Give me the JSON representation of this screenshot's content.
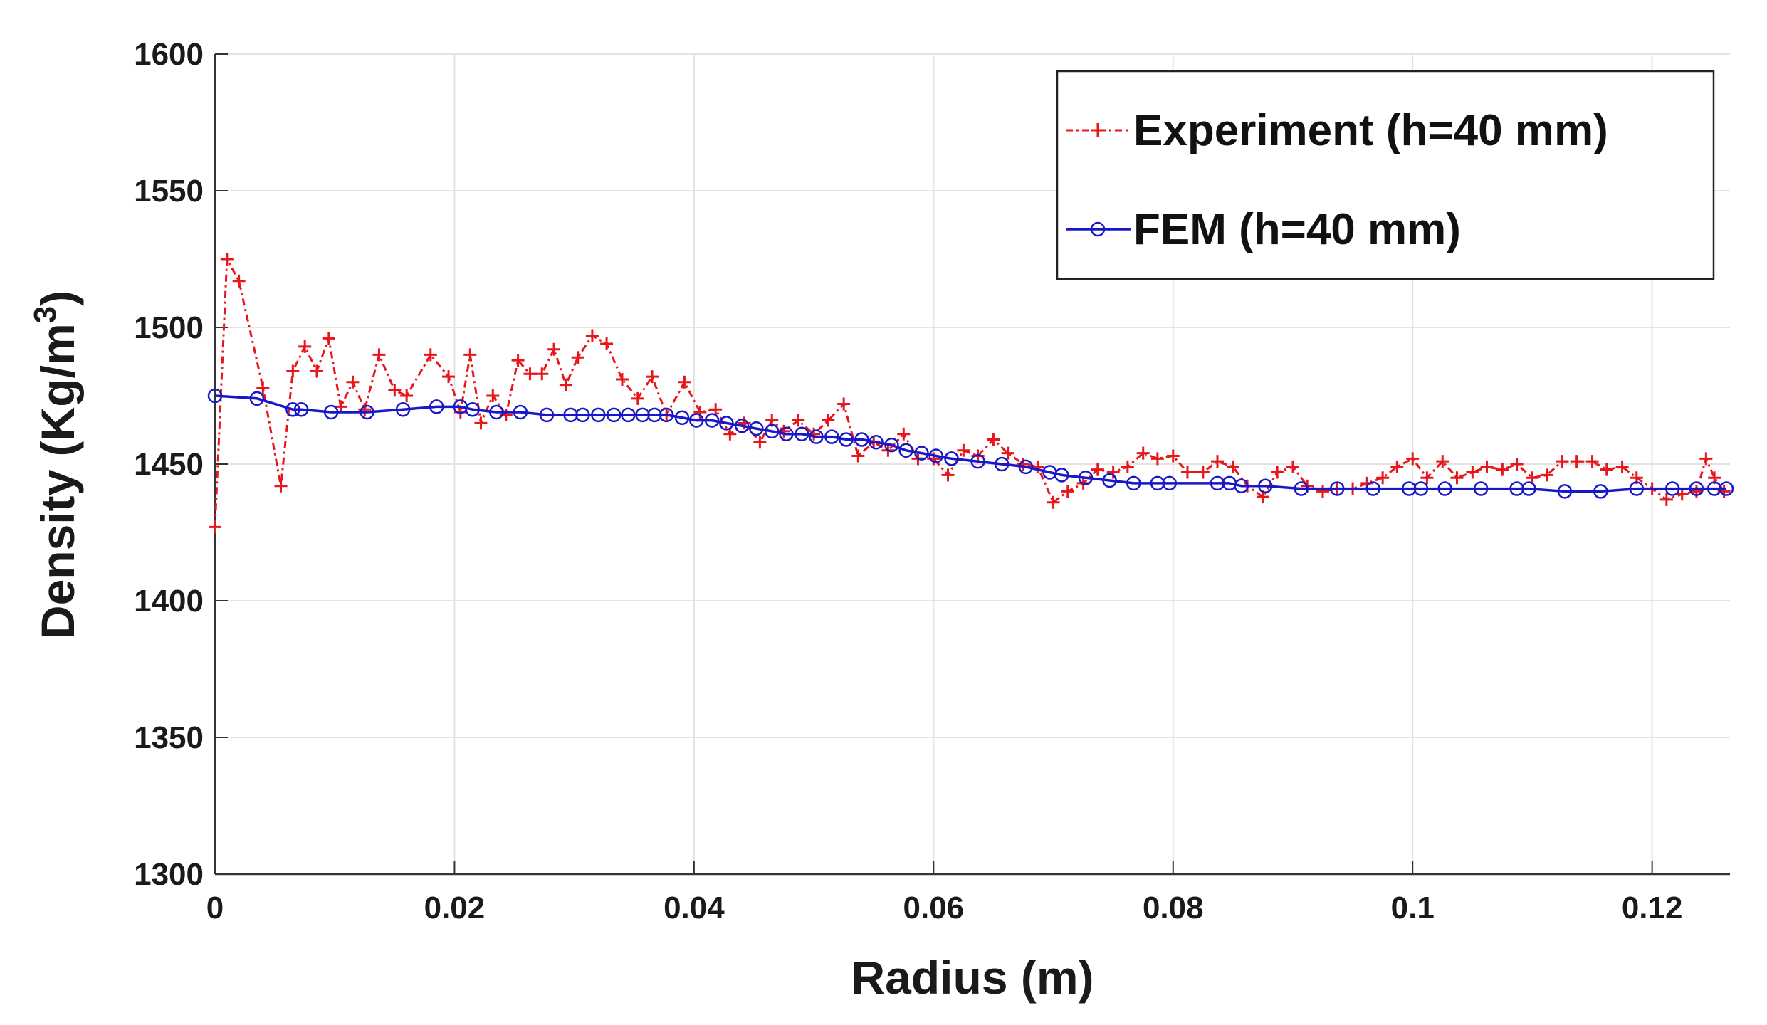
{
  "chart_data": {
    "type": "line",
    "title": "",
    "xlabel": "Radius (m)",
    "ylabel_main": "Density (Kg/m",
    "ylabel_sup": "3",
    "ylabel_close": ")",
    "xlim": [
      0,
      0.1265
    ],
    "ylim": [
      1300,
      1600
    ],
    "xticks": [
      0,
      0.02,
      0.04,
      0.06,
      0.08,
      0.1,
      0.12
    ],
    "xtick_labels": [
      "0",
      "0.02",
      "0.04",
      "0.06",
      "0.08",
      "0.1",
      "0.12"
    ],
    "yticks": [
      1300,
      1350,
      1400,
      1450,
      1500,
      1550,
      1600
    ],
    "ytick_labels": [
      "1300",
      "1350",
      "1400",
      "1450",
      "1500",
      "1550",
      "1600"
    ],
    "grid": true,
    "legend_position": "top-right",
    "series": [
      {
        "name": "Experiment (h=40 mm)",
        "color": "#e8161b",
        "line_style": "dash-dot",
        "marker": "plus",
        "x": [
          0,
          0.001,
          0.002,
          0.004,
          0.0055,
          0.0065,
          0.0075,
          0.0085,
          0.0095,
          0.0105,
          0.0115,
          0.0125,
          0.0137,
          0.015,
          0.016,
          0.018,
          0.0195,
          0.0205,
          0.0213,
          0.0222,
          0.0232,
          0.0243,
          0.0253,
          0.0263,
          0.0273,
          0.0283,
          0.0293,
          0.0303,
          0.0315,
          0.0327,
          0.034,
          0.0353,
          0.0365,
          0.0377,
          0.0392,
          0.0405,
          0.0418,
          0.043,
          0.0442,
          0.0455,
          0.0465,
          0.0475,
          0.0487,
          0.05,
          0.0512,
          0.0525,
          0.0537,
          0.055,
          0.0562,
          0.0575,
          0.0587,
          0.06,
          0.0612,
          0.0625,
          0.0637,
          0.065,
          0.0662,
          0.0675,
          0.0687,
          0.07,
          0.0712,
          0.0725,
          0.0737,
          0.075,
          0.0762,
          0.0775,
          0.0787,
          0.08,
          0.0812,
          0.0825,
          0.0837,
          0.085,
          0.0862,
          0.0875,
          0.0887,
          0.09,
          0.0912,
          0.0925,
          0.0937,
          0.095,
          0.0962,
          0.0975,
          0.0987,
          0.1,
          0.1012,
          0.1025,
          0.1037,
          0.105,
          0.1062,
          0.1075,
          0.1087,
          0.11,
          0.1112,
          0.1125,
          0.1137,
          0.115,
          0.1162,
          0.1175,
          0.1187,
          0.12,
          0.1212,
          0.1225,
          0.1237,
          0.1245,
          0.1252,
          0.126
        ],
        "y": [
          1427,
          1525,
          1517,
          1478,
          1442,
          1484,
          1493,
          1484,
          1496,
          1471,
          1480,
          1470,
          1490,
          1477,
          1475,
          1490,
          1482,
          1469,
          1490,
          1465,
          1475,
          1468,
          1488,
          1483,
          1483,
          1492,
          1479,
          1489,
          1497,
          1494,
          1481,
          1474,
          1482,
          1468,
          1480,
          1469,
          1470,
          1461,
          1465,
          1458,
          1466,
          1462,
          1466,
          1461,
          1466,
          1472,
          1453,
          1458,
          1455,
          1461,
          1452,
          1452,
          1446,
          1455,
          1453,
          1459,
          1454,
          1450,
          1449,
          1436,
          1440,
          1443,
          1448,
          1447,
          1449,
          1454,
          1452,
          1453,
          1447,
          1447,
          1451,
          1449,
          1442,
          1438,
          1447,
          1449,
          1442,
          1440,
          1441,
          1441,
          1443,
          1445,
          1449,
          1452,
          1445,
          1451,
          1445,
          1447,
          1449,
          1448,
          1450,
          1445,
          1446,
          1451,
          1451,
          1451,
          1448,
          1449,
          1445,
          1441,
          1437,
          1439,
          1440,
          1452,
          1445,
          1440
        ]
      },
      {
        "name": "FEM (h=40 mm)",
        "color": "#1818c8",
        "line_style": "solid",
        "marker": "circle",
        "x": [
          0,
          0.0035,
          0.0065,
          0.0072,
          0.0097,
          0.0127,
          0.0157,
          0.0185,
          0.0205,
          0.0215,
          0.0235,
          0.0255,
          0.0277,
          0.0297,
          0.0307,
          0.032,
          0.0333,
          0.0345,
          0.0357,
          0.0367,
          0.0377,
          0.039,
          0.0402,
          0.0415,
          0.0427,
          0.044,
          0.0452,
          0.0465,
          0.0477,
          0.049,
          0.0502,
          0.0515,
          0.0527,
          0.054,
          0.0552,
          0.0565,
          0.0577,
          0.059,
          0.0602,
          0.0615,
          0.0637,
          0.0657,
          0.0677,
          0.0697,
          0.0707,
          0.0727,
          0.0747,
          0.0767,
          0.0787,
          0.0797,
          0.0837,
          0.0847,
          0.0857,
          0.0877,
          0.0907,
          0.0937,
          0.0967,
          0.0997,
          0.1007,
          0.1027,
          0.1057,
          0.1087,
          0.1097,
          0.1127,
          0.1157,
          0.1187,
          0.1217,
          0.1237,
          0.1252,
          0.1262
        ],
        "y": [
          1475,
          1474,
          1470,
          1470,
          1469,
          1469,
          1470,
          1471,
          1471,
          1470,
          1469,
          1469,
          1468,
          1468,
          1468,
          1468,
          1468,
          1468,
          1468,
          1468,
          1468,
          1467,
          1466,
          1466,
          1465,
          1464,
          1463,
          1462,
          1461,
          1461,
          1460,
          1460,
          1459,
          1459,
          1458,
          1457,
          1455,
          1454,
          1453,
          1452,
          1451,
          1450,
          1449,
          1447,
          1446,
          1445,
          1444,
          1443,
          1443,
          1443,
          1443,
          1443,
          1442,
          1442,
          1441,
          1441,
          1441,
          1441,
          1441,
          1441,
          1441,
          1441,
          1441,
          1440,
          1440,
          1441,
          1441,
          1441,
          1441,
          1441
        ]
      }
    ]
  }
}
